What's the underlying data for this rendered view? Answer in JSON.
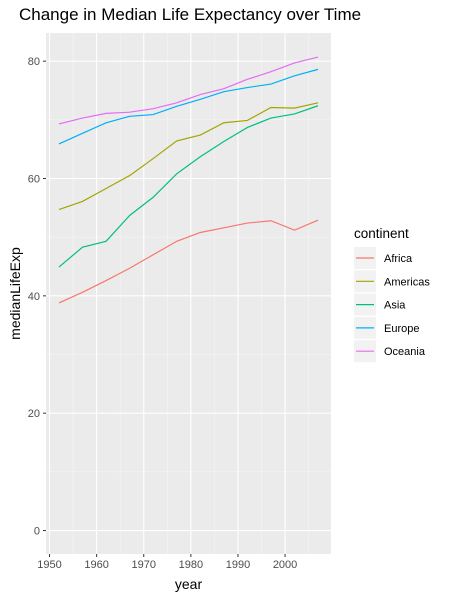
{
  "chart_data": {
    "type": "line",
    "title": "Change in Median Life Expectancy over Time",
    "xlabel": "year",
    "ylabel": "medianLifeExp",
    "xlim": [
      1949.25,
      2009.75
    ],
    "ylim": [
      -4,
      84.8
    ],
    "x_ticks": [
      1950,
      1960,
      1970,
      1980,
      1990,
      2000
    ],
    "y_ticks": [
      0,
      20,
      40,
      60,
      80
    ],
    "grid": true,
    "background": "#ebebeb",
    "legend": {
      "title": "continent",
      "position": "right"
    },
    "x": [
      1952,
      1957,
      1962,
      1967,
      1972,
      1977,
      1982,
      1987,
      1992,
      1997,
      2002,
      2007
    ],
    "series": [
      {
        "name": "Africa",
        "color": "#F8766D",
        "values": [
          38.8,
          40.6,
          42.6,
          44.7,
          47.0,
          49.3,
          50.8,
          51.6,
          52.4,
          52.8,
          51.2,
          52.9
        ]
      },
      {
        "name": "Americas",
        "color": "#A3A500",
        "values": [
          54.7,
          56.1,
          58.3,
          60.5,
          63.4,
          66.4,
          67.4,
          69.5,
          69.9,
          72.1,
          72.0,
          72.9
        ]
      },
      {
        "name": "Asia",
        "color": "#00BF7D",
        "values": [
          44.9,
          48.3,
          49.3,
          53.7,
          56.8,
          60.8,
          63.7,
          66.3,
          68.7,
          70.3,
          71.0,
          72.4
        ]
      },
      {
        "name": "Europe",
        "color": "#00B0F6",
        "values": [
          65.9,
          67.7,
          69.5,
          70.6,
          70.9,
          72.3,
          73.5,
          74.8,
          75.5,
          76.1,
          77.5,
          78.6
        ]
      },
      {
        "name": "Oceania",
        "color": "#E76BF3",
        "values": [
          69.3,
          70.3,
          71.1,
          71.3,
          71.9,
          72.9,
          74.3,
          75.3,
          76.9,
          78.2,
          79.7,
          80.7
        ]
      }
    ]
  }
}
